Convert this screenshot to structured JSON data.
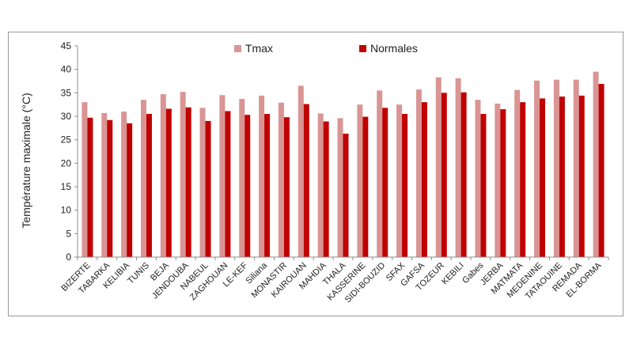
{
  "chart_data": {
    "type": "bar",
    "title": "",
    "xlabel": "",
    "ylabel": "Température maximale (°C)",
    "ylim": [
      0,
      45
    ],
    "yticks": [
      0,
      5,
      10,
      15,
      20,
      25,
      30,
      35,
      40,
      45
    ],
    "grid": false,
    "legend_position": "top",
    "categories": [
      "BIZERTE",
      "TABARKA",
      "KELIBIA",
      "TUNIS",
      "BEJA",
      "JENDOUBA",
      "NABEUL",
      "ZAGHOUAN",
      "LE-KEF",
      "Siliana",
      "MONASTIR",
      "KAIROUAN",
      "MAHDIA",
      "THALA",
      "KASSERINE",
      "SIDI-BOUZID",
      "SFAX",
      "GAFSA",
      "TOZEUR",
      "KEBILI",
      "Gabes",
      "JERBA",
      "MATMATA",
      "MEDENINE",
      "TATAOUINE",
      "REMADA",
      "EL-BORMA"
    ],
    "series": [
      {
        "name": "Tmax",
        "color": "#d99594",
        "values": [
          33.0,
          30.7,
          31.0,
          33.5,
          34.7,
          35.2,
          31.8,
          34.5,
          33.7,
          34.4,
          32.9,
          36.5,
          30.6,
          29.6,
          32.5,
          35.5,
          32.5,
          35.7,
          38.3,
          38.1,
          33.5,
          32.7,
          35.6,
          37.6,
          37.8,
          37.8,
          39.5
        ]
      },
      {
        "name": "Normales",
        "color": "#c00000",
        "values": [
          29.7,
          29.2,
          28.5,
          30.5,
          31.6,
          31.9,
          29.0,
          31.1,
          30.3,
          30.5,
          29.8,
          32.6,
          28.9,
          26.3,
          29.9,
          31.8,
          30.5,
          33.0,
          35.0,
          35.1,
          30.5,
          31.5,
          33.0,
          33.8,
          34.2,
          34.4,
          36.9
        ]
      }
    ]
  }
}
